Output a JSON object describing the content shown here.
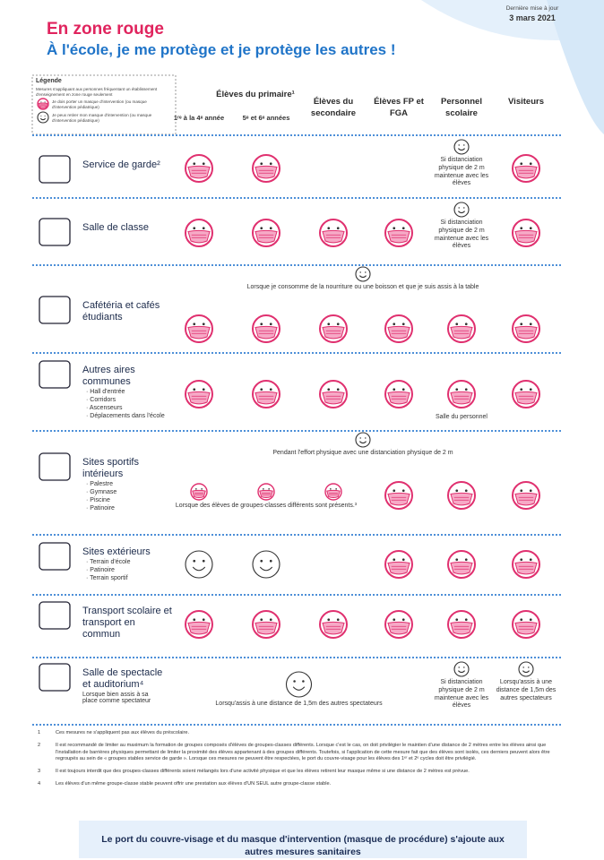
{
  "header": {
    "update_label": "Dernière mise à jour",
    "date": "3 mars 2021",
    "title": "En zone rouge",
    "subtitle": "À l'école, je me protège et je protège les autres !"
  },
  "legend": {
    "title": "Légende",
    "scope": "Mesures s'appliquant aux personnes fréquentant un établissement d'enseignement en zone rouge seulement",
    "mask": "Je dois porter un masque d'intervention (ou masque d'intervention pédiatrique)",
    "no_mask": "Je peux retirer mon masque d'intervention (ou masque d'intervention pédiatrique)"
  },
  "columns": {
    "group": "Élèves du primaire¹",
    "labels": [
      "1ʳᵉ à la 4ᵉ année",
      "5ᵉ et 6ᵉ années",
      "Élèves du secondaire",
      "Élèves FP et FGA",
      "Personnel scolaire",
      "Visiteurs"
    ]
  },
  "rows": [
    {
      "label": "Service de garde²",
      "cells": [
        "mask",
        "mask",
        null,
        null,
        {
          "icon": "smile",
          "note": "Si distanciation physique de 2 m maintenue avec les élèves"
        },
        "mask"
      ]
    },
    {
      "label": "Salle de classe",
      "cells": [
        "mask",
        "mask",
        "mask",
        "mask",
        {
          "icon": "smile",
          "note": "Si distanciation physique de 2 m maintenue avec les élèves"
        },
        "mask"
      ]
    },
    {
      "label": "Cafétéria et cafés étudiants",
      "above": "Lorsque je consomme de la nourriture ou une boisson et que je suis assis à la table",
      "cells": [
        "mask",
        "mask",
        "mask",
        "mask",
        "mask",
        "mask"
      ]
    },
    {
      "label": "Autres aires communes",
      "items": [
        "Hall d'entrée",
        "Corridors",
        "Ascenseurs",
        "Déplacements dans l'école"
      ],
      "cells": [
        "mask",
        "mask",
        "mask",
        "mask",
        {
          "icon": "mask",
          "note": "Salle du personnel"
        },
        "mask"
      ]
    },
    {
      "label": "Sites sportifs intérieurs",
      "items": [
        "Palestre",
        "Gymnase",
        "Piscine",
        "Patinoire"
      ],
      "above": "Pendant l'effort physique avec une distanciation physique de 2 m",
      "cells": [
        "small-mask",
        "small-mask",
        "small-mask",
        "mask",
        "mask",
        "mask"
      ],
      "spans": [
        {
          "from": 0,
          "to": 2,
          "note": "Lorsque des élèves de groupes-classes différents sont présents.³"
        }
      ]
    },
    {
      "label": "Sites extérieurs",
      "items": [
        "Terrain d'école",
        "Patinoire",
        "Terrain sportif"
      ],
      "cells": [
        "smile",
        "smile",
        null,
        "mask",
        "mask",
        "mask"
      ]
    },
    {
      "label": "Transport scolaire et transport en commun",
      "cells": [
        "mask",
        "mask",
        "mask",
        "mask",
        "mask",
        "mask"
      ]
    },
    {
      "label": "Salle de spectacle et auditorium⁴",
      "sublabel": "Lorsque bien assis à sa place comme spectateur",
      "cells": [
        null,
        null,
        null,
        null,
        {
          "icon": "smile",
          "note": "Si distanciation physique de 2 m maintenue avec les élèves"
        },
        {
          "icon": "smile",
          "note": "Lorsqu'assis à une distance de 1,5m des autres spectateurs"
        }
      ],
      "spans": [
        {
          "from": 0,
          "to": 3,
          "icon": "smile",
          "note": "Lorsqu'assis à une distance de 1,5m des autres spectateurs"
        }
      ]
    }
  ],
  "footnotes": [
    {
      "number": "1",
      "text": "Ces mesures ne s'appliquent pas aux élèves du préscolaire."
    },
    {
      "number": "2",
      "text": "Il est recommandé de limiter au maximum la formation de groupes composés d'élèves de groupes-classes différents. Lorsque c'est le cas, on doit privilégier le maintien d'une distance de 2 mètres entre les élèves ainsi que l'installation de barrières physiques permettant de limiter la proximité des élèves appartenant à des groupes différents. Toutefois, si l'application de cette mesure fait que des élèves sont isolés, ces derniers peuvent alors être regroupés au sein de « groupes stables service de garde ». Lorsque ces mesures ne peuvent être respectées, le port du couvre-visage pour les élèves des 1ᵉʳ et 2ᵉ cycles doit être privilégié."
    },
    {
      "number": "3",
      "text": "Il est toujours interdit que des groupes-classes différents soient mélangés lors d'une activité physique et que les élèves retirent leur masque même si une distance de 2 mètres est prévue."
    },
    {
      "number": "4",
      "text": "Les élèves d'un même groupe-classe stable peuvent offrir une prestation aux élèves d'UN SEUL autre groupe-classe stable."
    }
  ],
  "banner": "Le port du couvre-visage et du masque d'intervention (masque de procédure) s'ajoute aux autres mesures sanitaires"
}
